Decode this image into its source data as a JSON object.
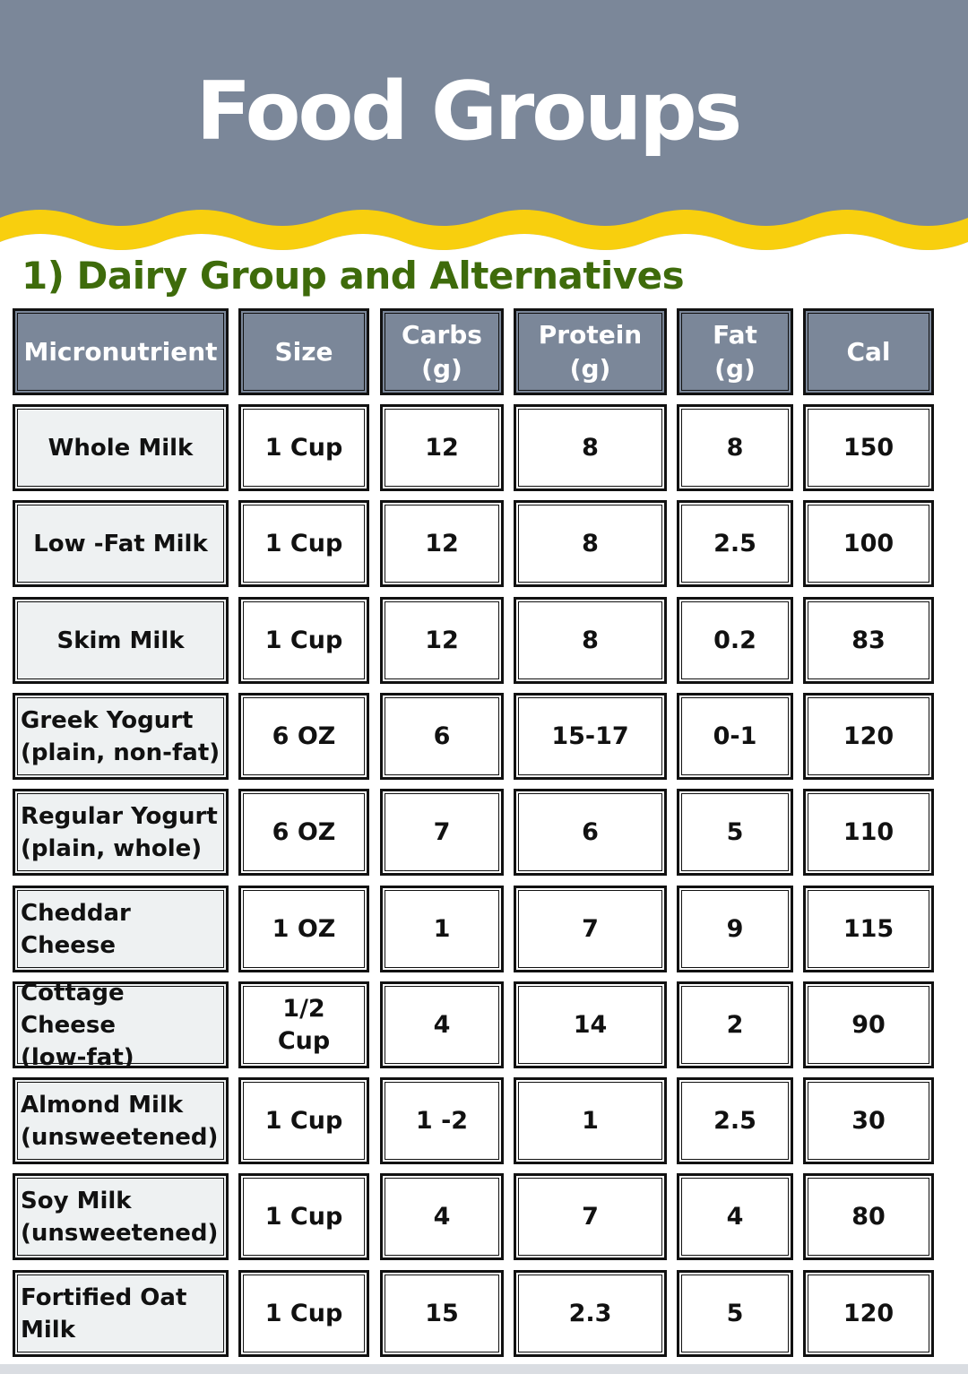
{
  "header": {
    "title": "Food Groups",
    "background_color": "#7b8799",
    "wave_color": "#f8cf0e"
  },
  "section": {
    "title": "1) Dairy Group and Alternatives",
    "title_color": "#3e6b0b"
  },
  "table": {
    "columns": [
      "Micronutrient",
      "Size",
      "Carbs\n(g)",
      "Protein\n(g)",
      "Fat\n(g)",
      "Cal"
    ],
    "rows": [
      {
        "name": "Whole Milk",
        "size": "1 Cup",
        "carbs": "12",
        "protein": "8",
        "fat": "8",
        "cal": "150"
      },
      {
        "name": "Low -Fat Milk",
        "size": "1 Cup",
        "carbs": "12",
        "protein": "8",
        "fat": "2.5",
        "cal": "100"
      },
      {
        "name": "Skim Milk",
        "size": "1 Cup",
        "carbs": "12",
        "protein": "8",
        "fat": "0.2",
        "cal": "83"
      },
      {
        "name": "Greek Yogurt\n(plain, non-fat)",
        "size": "6 OZ",
        "carbs": "6",
        "protein": "15-17",
        "fat": "0-1",
        "cal": "120"
      },
      {
        "name": "Regular Yogurt\n(plain, whole)",
        "size": "6 OZ",
        "carbs": "7",
        "protein": "6",
        "fat": "5",
        "cal": "110"
      },
      {
        "name": "Cheddar Cheese",
        "size": "1 OZ",
        "carbs": "1",
        "protein": "7",
        "fat": "9",
        "cal": "115"
      },
      {
        "name": "Cottage Cheese\n(low-fat)",
        "size": "1/2\nCup",
        "carbs": "4",
        "protein": "14",
        "fat": "2",
        "cal": "90"
      },
      {
        "name": "Almond Milk\n(unsweetened)",
        "size": "1 Cup",
        "carbs": "1 -2",
        "protein": "1",
        "fat": "2.5",
        "cal": "30"
      },
      {
        "name": "Soy Milk\n(unsweetened)",
        "size": "1 Cup",
        "carbs": "4",
        "protein": "7",
        "fat": "4",
        "cal": "80"
      },
      {
        "name": "Fortified Oat\nMilk",
        "size": "1 Cup",
        "carbs": "15",
        "protein": "2.3",
        "fat": "5",
        "cal": "120"
      }
    ]
  }
}
